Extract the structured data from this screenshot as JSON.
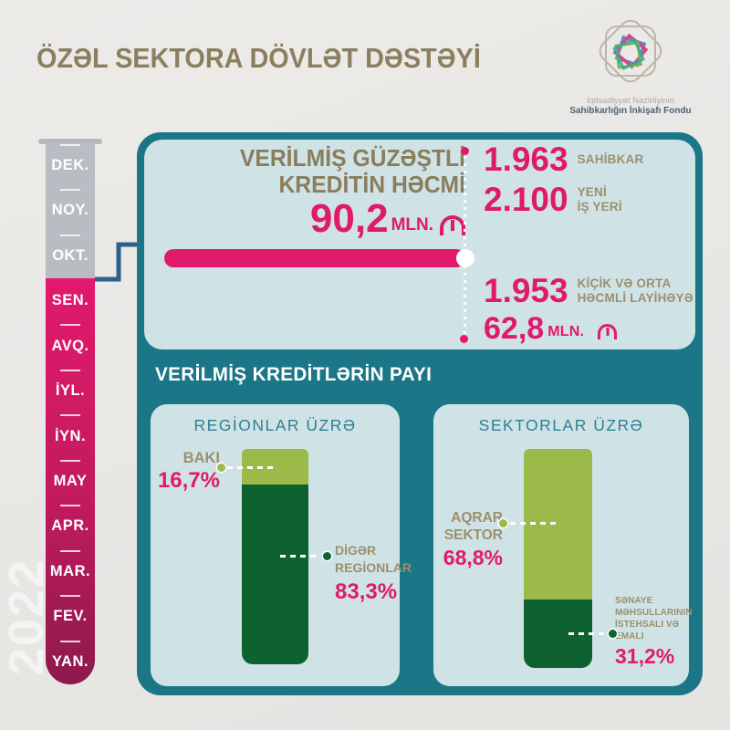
{
  "title": "ÖZƏL SEKTORA DÖVLƏT DƏSTƏYİ",
  "watermark_year": "2022",
  "logo": {
    "org_line1": "İqtisadiyyat Nazirliyinin",
    "org_line2": "Sahibkarlığın İnkişafı Fondu"
  },
  "timeline": {
    "months": [
      {
        "label": "DEK."
      },
      {
        "label": "NOY."
      },
      {
        "label": "OKT."
      },
      {
        "label": "SEN."
      },
      {
        "label": "AVQ."
      },
      {
        "label": "İYL."
      },
      {
        "label": "İYN."
      },
      {
        "label": "MAY"
      },
      {
        "label": "APR."
      },
      {
        "label": "MAR."
      },
      {
        "label": "FEV."
      },
      {
        "label": "YAN."
      }
    ]
  },
  "headline": {
    "title_line1": "VERİLMİŞ GÜZƏŞTLİ",
    "title_line2": "KREDİTİN HƏCMİ",
    "amount": "90,2",
    "unit": "MLN.",
    "currency": "AZN manat"
  },
  "stats": [
    {
      "value": "1.963",
      "label1": "SAHİBKAR",
      "label2": ""
    },
    {
      "value": "2.100",
      "label1": "YENİ",
      "label2": "İŞ YERİ"
    },
    {
      "value": "1.953",
      "label1": "KİÇİK VƏ ORTA",
      "label2": "HƏCMLİ LAYİHƏYƏ"
    },
    {
      "value": "62,8",
      "label1": "MLN.",
      "label2": ""
    }
  ],
  "share_section": {
    "title": "VERİLMİŞ KREDİTLƏRİN PAYI",
    "cards": [
      {
        "title": "REGİONLAR ÜZRƏ",
        "seg1_name": "BAKI",
        "seg1_pct": "16,7%",
        "seg2_line1": "DİGƏR",
        "seg2_line2": "REGİONLAR",
        "seg2_pct": "83,3%"
      },
      {
        "title": "SEKTORLAR ÜZRƏ",
        "seg1_line1": "AQRAR",
        "seg1_line2": "SEKTOR",
        "seg1_pct": "68,8%",
        "seg2_line1": "SƏNAYE",
        "seg2_line2": "MƏHSULLARININ",
        "seg2_line3": "İSTEHSALI VƏ",
        "seg2_line4": "EMALI",
        "seg2_pct": "31,2%"
      }
    ]
  },
  "colors": {
    "teal": "#1b7787",
    "panel_light": "#cfe3e6",
    "pink": "#e01a6b",
    "pink_dark": "#8c1a4c",
    "olive_title": "#8a7d5b",
    "olive_label": "#9c8f6d",
    "gray_column": "#b9bdc3",
    "green_light": "#9cba49",
    "green_dark": "#0e622f",
    "connector_blue": "#2e6089"
  },
  "chart_data": [
    {
      "type": "bar",
      "variant": "stacked-column",
      "title": "REGİONLAR ÜZRƏ",
      "categories": [
        "BAKI",
        "DİGƏR REGİONLAR"
      ],
      "values": [
        16.7,
        83.3
      ],
      "unit": "%",
      "colors": [
        "#9cba49",
        "#0e622f"
      ],
      "annotations": [
        "16,7%",
        "83,3%"
      ],
      "legend_position": "callout-labels",
      "axis": "none"
    },
    {
      "type": "bar",
      "variant": "stacked-column",
      "title": "SEKTORLAR ÜZRƏ",
      "categories": [
        "AQRAR SEKTOR",
        "SƏNAYE MƏHSULLARININ İSTEHSALI VƏ EMALI"
      ],
      "values": [
        68.8,
        31.2
      ],
      "unit": "%",
      "colors": [
        "#9cba49",
        "#0e622f"
      ],
      "annotations": [
        "68,8%",
        "31,2%"
      ],
      "legend_position": "callout-labels",
      "axis": "none"
    }
  ]
}
